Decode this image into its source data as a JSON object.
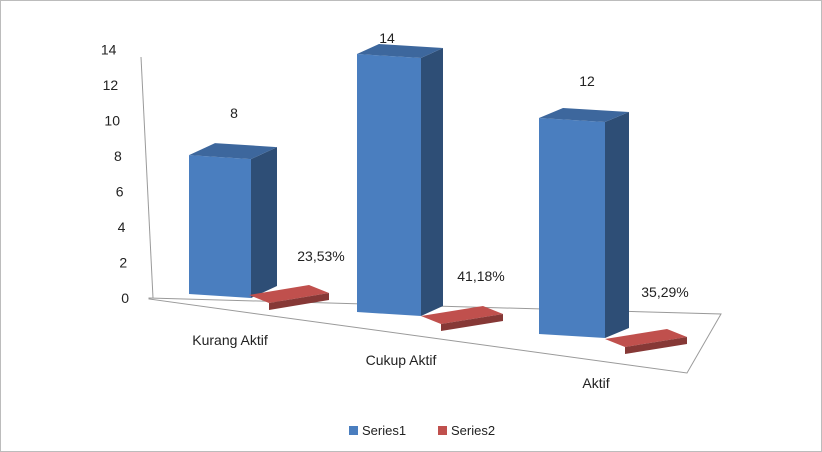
{
  "chart_data": {
    "type": "bar",
    "three_d": true,
    "categories": [
      "Kurang Aktif",
      "Cukup Aktif",
      "Aktif"
    ],
    "series": [
      {
        "name": "Series1",
        "values": [
          8,
          14,
          12
        ],
        "labels": [
          "8",
          "14",
          "12"
        ],
        "color": "#4a7ebf"
      },
      {
        "name": "Series2",
        "values": [
          23.53,
          41.18,
          35.29
        ],
        "labels": [
          "23,53%",
          "41,18%",
          "35,29%"
        ],
        "color": "#c0504d"
      }
    ],
    "yticks": [
      "0",
      "2",
      "4",
      "6",
      "8",
      "10",
      "12",
      "14"
    ],
    "ylim": [
      0,
      14
    ],
    "legend": "bottom",
    "grid": false
  }
}
